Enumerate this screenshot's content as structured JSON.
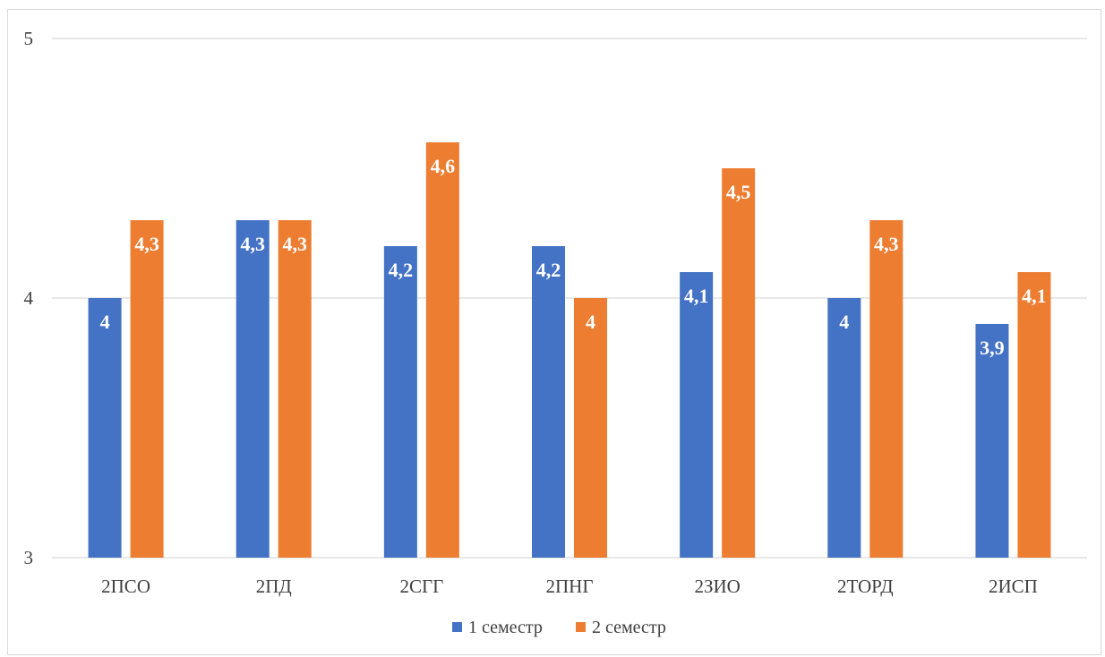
{
  "chart_data": {
    "type": "bar",
    "title": "",
    "xlabel": "",
    "ylabel": "",
    "ylim": [
      3,
      5
    ],
    "yticks": [
      3,
      4,
      5
    ],
    "ytick_labels": [
      "3",
      "4",
      "5"
    ],
    "categories": [
      "2ПСО",
      "2ПД",
      "2СГГ",
      "2ПНГ",
      "2ЗИО",
      "2ТОРД",
      "2ИСП"
    ],
    "series": [
      {
        "name": "1 семестр",
        "color": "#4472c4",
        "values": [
          4,
          4.3,
          4.2,
          4.2,
          4.1,
          4,
          3.9
        ],
        "labels": [
          "4",
          "4,3",
          "4,2",
          "4,2",
          "4,1",
          "4",
          "3,9"
        ]
      },
      {
        "name": "2 семестр",
        "color": "#ed7d31",
        "values": [
          4.3,
          4.3,
          4.6,
          4,
          4.5,
          4.3,
          4.1
        ],
        "labels": [
          "4,3",
          "4,3",
          "4,6",
          "4",
          "4,5",
          "4,3",
          "4,1"
        ]
      }
    ],
    "grid": true,
    "legend_position": "bottom"
  }
}
